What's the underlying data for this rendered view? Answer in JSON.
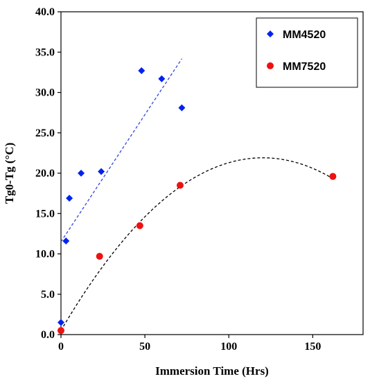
{
  "chart_data": {
    "type": "scatter",
    "xlabel": "Immersion Time (Hrs)",
    "ylabel": "Tg0-Tg (°C)",
    "xlim": [
      0,
      180
    ],
    "ylim": [
      0,
      40
    ],
    "x_ticks": [
      0,
      50,
      100,
      150
    ],
    "x_tick_labels": [
      "0",
      "50",
      "100",
      "150"
    ],
    "y_ticks": [
      0,
      5,
      10,
      15,
      20,
      25,
      30,
      35,
      40
    ],
    "y_tick_labels": [
      "0.0",
      "5.0",
      "10.0",
      "15.0",
      "20.0",
      "25.0",
      "30.0",
      "35.0",
      "40.0"
    ],
    "grid": false,
    "legend_position": "top-right",
    "series": [
      {
        "name": "MM4520",
        "marker": "diamond",
        "color": "#0022ee",
        "points": [
          [
            0,
            1.5
          ],
          [
            3,
            11.6
          ],
          [
            5,
            16.9
          ],
          [
            12,
            20.0
          ],
          [
            24,
            20.2
          ],
          [
            48,
            32.7
          ],
          [
            60,
            31.7
          ],
          [
            72,
            28.1
          ]
        ],
        "trendline": {
          "kind": "linear",
          "style": "dashed",
          "color": "#3344dd",
          "x_range": [
            0,
            72
          ],
          "coefficients": [
            11.5,
            0.315
          ]
        }
      },
      {
        "name": "MM7520",
        "marker": "circle",
        "color": "#ee1111",
        "points": [
          [
            0,
            0.5
          ],
          [
            23,
            9.7
          ],
          [
            47,
            13.5
          ],
          [
            71,
            18.5
          ],
          [
            162,
            19.6
          ]
        ],
        "trendline": {
          "kind": "polynomial",
          "style": "dashed",
          "color": "#000000",
          "x_range": [
            0,
            162
          ],
          "coefficients": [
            0.5,
            0.356,
            -0.00148
          ]
        }
      }
    ]
  }
}
